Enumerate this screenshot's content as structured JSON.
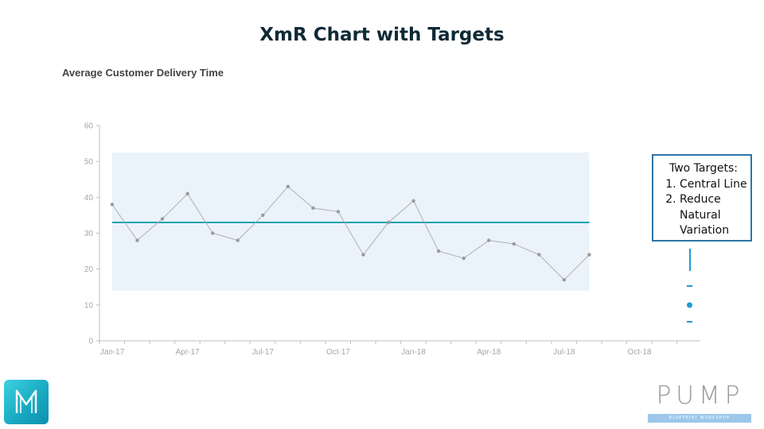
{
  "slide": {
    "title": "XmR Chart with Targets"
  },
  "chart_data": {
    "type": "line",
    "title": "Average Customer Delivery Time",
    "xlabel": "",
    "ylabel": "",
    "ylim": [
      0,
      60
    ],
    "y_ticks": [
      0,
      10,
      20,
      30,
      40,
      50,
      60
    ],
    "x_tick_labels": [
      "Jan-17",
      "Apr-17",
      "Jul-17",
      "Oct-17",
      "Jan-18",
      "Apr-18",
      "Jul-18",
      "Oct-18"
    ],
    "x": [
      "Jan-17",
      "Feb-17",
      "Mar-17",
      "Apr-17",
      "May-17",
      "Jun-17",
      "Jul-17",
      "Aug-17",
      "Sep-17",
      "Oct-17",
      "Nov-17",
      "Dec-17",
      "Jan-18",
      "Feb-18",
      "Mar-18",
      "Apr-18",
      "May-18",
      "Jun-18",
      "Jul-18",
      "Aug-18"
    ],
    "series": [
      {
        "values": [
          38,
          28,
          34,
          41,
          30,
          28,
          35,
          43,
          37,
          36,
          24,
          33,
          39,
          25,
          23,
          28,
          27,
          24,
          17,
          24
        ],
        "color": "#b0b0b0",
        "marker_color": "#9a9a9a"
      }
    ],
    "central_line": 33,
    "central_line_color": "#1aa3b0",
    "limits": {
      "upper": 52.5,
      "lower": 14
    },
    "limits_band_color": "#eaf2fa",
    "grid": false,
    "legend": "none"
  },
  "callout": {
    "heading": "Two Targets:",
    "items": [
      "Central Line",
      "Reduce Natural Variation"
    ],
    "border_color": "#2e75a6"
  },
  "target_marks": {
    "color": "#1e9ad6"
  },
  "logos": {
    "left_icon": "m-letter-logo-icon",
    "right_word": "PUMP",
    "right_subtitle": "BLUEPRINT WORKSHOP"
  }
}
